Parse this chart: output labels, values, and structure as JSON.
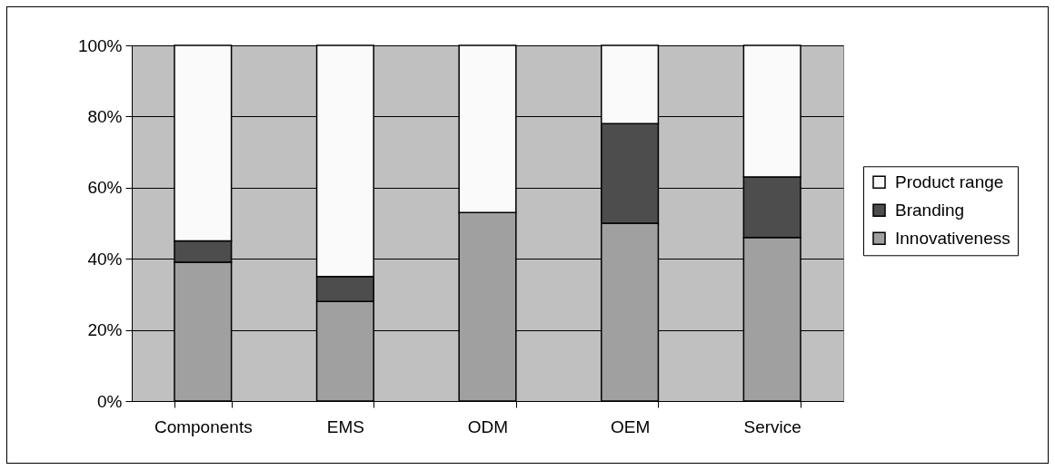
{
  "chart_data": {
    "type": "bar",
    "stacked": true,
    "categories": [
      "Components",
      "EMS",
      "ODM",
      "OEM",
      "Service"
    ],
    "series": [
      {
        "name": "Innovativeness",
        "color": "#a0a0a0",
        "values": [
          39,
          28,
          53,
          50,
          46
        ]
      },
      {
        "name": "Branding",
        "color": "#4d4d4d",
        "values": [
          6,
          7,
          0,
          28,
          17
        ]
      },
      {
        "name": "Product range",
        "color": "#fafafa",
        "values": [
          55,
          65,
          47,
          22,
          37
        ]
      }
    ],
    "ylim": [
      0,
      100
    ],
    "yticks": [
      {
        "value": 0,
        "label": "0%"
      },
      {
        "value": 20,
        "label": "20%"
      },
      {
        "value": 40,
        "label": "40%"
      },
      {
        "value": 60,
        "label": "60%"
      },
      {
        "value": 80,
        "label": "80%"
      },
      {
        "value": 100,
        "label": "100%"
      }
    ],
    "grid": "y",
    "legend": "right"
  }
}
